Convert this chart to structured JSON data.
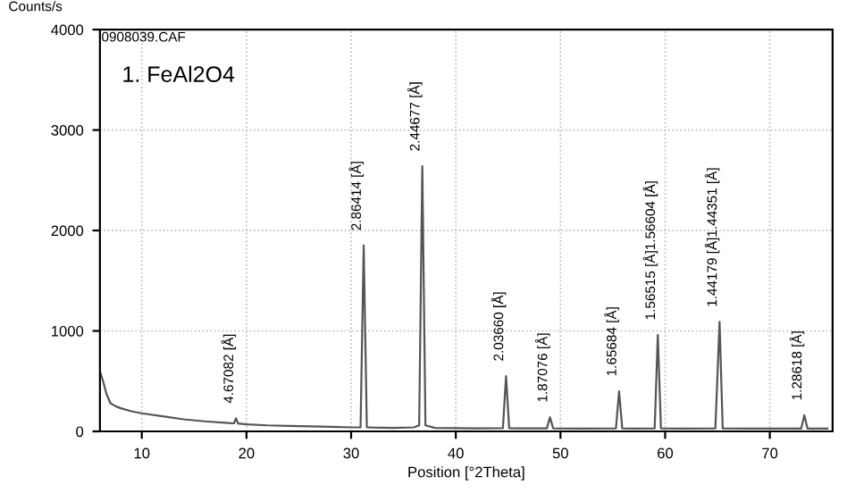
{
  "chart_data": {
    "type": "line",
    "title": "1. FeAl2O4",
    "subtitle": "0908039.CAF",
    "ylabel": "Counts/s",
    "xlabel": "Position [°2Theta]",
    "xlim": [
      6,
      76
    ],
    "ylim": [
      0,
      4000
    ],
    "xticks": [
      10,
      20,
      30,
      40,
      50,
      60,
      70
    ],
    "yticks": [
      0,
      1000,
      2000,
      3000,
      4000
    ],
    "grid": true,
    "marker": "none",
    "line_style": "solid",
    "series": [
      {
        "color": "#555555",
        "x": [
          6.0,
          6.3,
          6.6,
          7.0,
          7.5,
          8,
          9,
          10,
          12,
          14,
          16,
          18,
          18.8,
          19.0,
          19.2,
          20,
          22,
          24,
          26,
          28,
          30,
          30.9,
          31.2,
          31.5,
          32,
          34,
          36,
          36.5,
          36.8,
          37.1,
          38,
          40,
          42,
          44.5,
          44.8,
          45.1,
          46,
          48.7,
          49.0,
          49.3,
          52,
          55.3,
          55.6,
          55.9,
          57,
          59.0,
          59.3,
          59.6,
          62,
          64.8,
          65.2,
          65.5,
          68,
          71,
          73.0,
          73.3,
          73.6,
          75.5
        ],
        "values": [
          600,
          500,
          380,
          280,
          250,
          230,
          200,
          180,
          150,
          120,
          100,
          85,
          80,
          130,
          78,
          70,
          60,
          55,
          50,
          45,
          40,
          40,
          1850,
          40,
          38,
          35,
          40,
          60,
          2640,
          60,
          35,
          32,
          30,
          32,
          550,
          32,
          30,
          30,
          140,
          30,
          28,
          30,
          400,
          30,
          28,
          30,
          960,
          30,
          28,
          30,
          1090,
          30,
          28,
          28,
          28,
          160,
          28,
          28
        ]
      }
    ],
    "annotations": [
      {
        "text": "4.67082 [Å]",
        "x": 19.0,
        "y": 130
      },
      {
        "text": "2.86414 [Å]",
        "x": 31.2,
        "y": 1850
      },
      {
        "text": "2.44677 [Å]",
        "x": 36.8,
        "y": 2640
      },
      {
        "text": "2.03660 [Å]",
        "x": 44.8,
        "y": 550
      },
      {
        "text": "1.87076 [Å]",
        "x": 49.0,
        "y": 140
      },
      {
        "text": "1.65684 [Å]",
        "x": 55.6,
        "y": 400
      },
      {
        "text": "1.56515 [Å]1.56604 [Å]",
        "x": 59.3,
        "y": 960
      },
      {
        "text": "1.44179 [Å]1.44351 [Å]",
        "x": 65.2,
        "y": 1090
      },
      {
        "text": "1.28618 [Å]",
        "x": 73.3,
        "y": 160
      }
    ]
  }
}
